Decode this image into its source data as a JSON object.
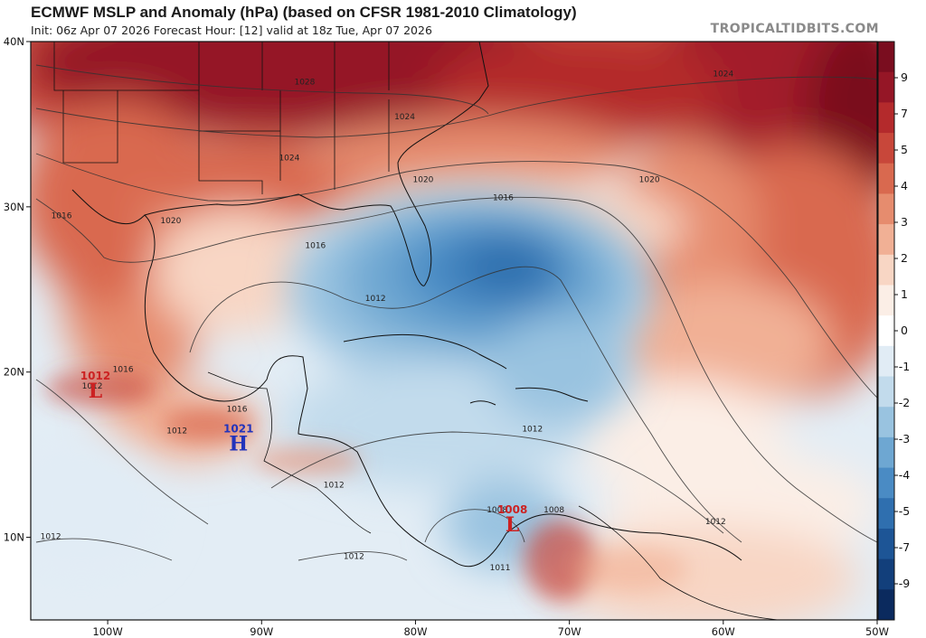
{
  "header": {
    "title": "ECMWF MSLP and Anomaly (hPa) (based on CFSR 1981-2010 Climatology)",
    "subtitle": "Init: 06z Apr 07 2026   Forecast Hour: [12]   valid at 18z Tue, Apr 07 2026",
    "brand": "TROPICALTIDBITS.COM"
  },
  "map": {
    "lon_range": [
      -105,
      -50
    ],
    "lat_range": [
      5,
      40
    ],
    "lon_ticks": [
      {
        "value": -100,
        "label": "100W"
      },
      {
        "value": -90,
        "label": "90W"
      },
      {
        "value": -80,
        "label": "80W"
      },
      {
        "value": -70,
        "label": "70W"
      },
      {
        "value": -60,
        "label": "60W"
      },
      {
        "value": -50,
        "label": "50W"
      }
    ],
    "lat_ticks": [
      {
        "value": 40,
        "label": "40N"
      },
      {
        "value": 30,
        "label": "30N"
      },
      {
        "value": 20,
        "label": "20N"
      },
      {
        "value": 10,
        "label": "10N"
      }
    ],
    "isobar_labels": [
      {
        "text": "1028",
        "lon": -87.2,
        "lat": 37.4
      },
      {
        "text": "1024",
        "lon": -80.7,
        "lat": 35.3
      },
      {
        "text": "1024",
        "lon": -88.2,
        "lat": 32.8
      },
      {
        "text": "1024",
        "lon": -60.0,
        "lat": 37.9
      },
      {
        "text": "1020",
        "lon": -79.5,
        "lat": 31.5
      },
      {
        "text": "1020",
        "lon": -64.8,
        "lat": 31.5
      },
      {
        "text": "1020",
        "lon": -95.9,
        "lat": 29.0
      },
      {
        "text": "1016",
        "lon": -103.0,
        "lat": 29.3
      },
      {
        "text": "1016",
        "lon": -86.5,
        "lat": 27.5
      },
      {
        "text": "1016",
        "lon": -74.3,
        "lat": 30.4
      },
      {
        "text": "1016",
        "lon": -99.0,
        "lat": 20.0
      },
      {
        "text": "1016",
        "lon": -91.6,
        "lat": 17.6
      },
      {
        "text": "1012",
        "lon": -82.6,
        "lat": 24.3
      },
      {
        "text": "1012",
        "lon": -72.4,
        "lat": 16.4
      },
      {
        "text": "1012",
        "lon": -95.5,
        "lat": 16.3
      },
      {
        "text": "1012",
        "lon": -85.3,
        "lat": 13.0
      },
      {
        "text": "1012",
        "lon": -103.7,
        "lat": 9.9
      },
      {
        "text": "1012",
        "lon": -84.0,
        "lat": 8.7
      },
      {
        "text": "1012",
        "lon": -60.5,
        "lat": 10.8
      },
      {
        "text": "1012",
        "lon": -101.0,
        "lat": 19.0
      },
      {
        "text": "1008",
        "lon": -74.7,
        "lat": 11.5
      },
      {
        "text": "1008",
        "lon": -71.0,
        "lat": 11.5
      },
      {
        "text": "1011",
        "lon": -74.5,
        "lat": 8.0
      }
    ],
    "pressure_centers": [
      {
        "type": "L",
        "value": "1012",
        "lon": -100.8,
        "lat": 19.0,
        "color": "#cc2222"
      },
      {
        "type": "H",
        "value": "1021",
        "lon": -91.5,
        "lat": 15.8,
        "color": "#2233bb"
      },
      {
        "type": "L",
        "value": "1008",
        "lon": -73.7,
        "lat": 10.9,
        "color": "#cc2222"
      }
    ]
  },
  "colorbar": {
    "labels": [
      "9",
      "7",
      "5",
      "4",
      "3",
      "2",
      "1",
      "0",
      "-1",
      "-2",
      "-3",
      "-4",
      "-5",
      "-7",
      "-9"
    ],
    "colors": [
      "#7a0d1f",
      "#951626",
      "#b42a2c",
      "#c8473a",
      "#d9694f",
      "#e68c6e",
      "#f1b095",
      "#f8d6c4",
      "#fbeee6",
      "#ffffff",
      "#e1ecf5",
      "#c2dbec",
      "#99c3e0",
      "#6ea7d2",
      "#4a8bc4",
      "#2f6faf",
      "#1d5596",
      "#123f7b",
      "#0b2a5e"
    ]
  }
}
